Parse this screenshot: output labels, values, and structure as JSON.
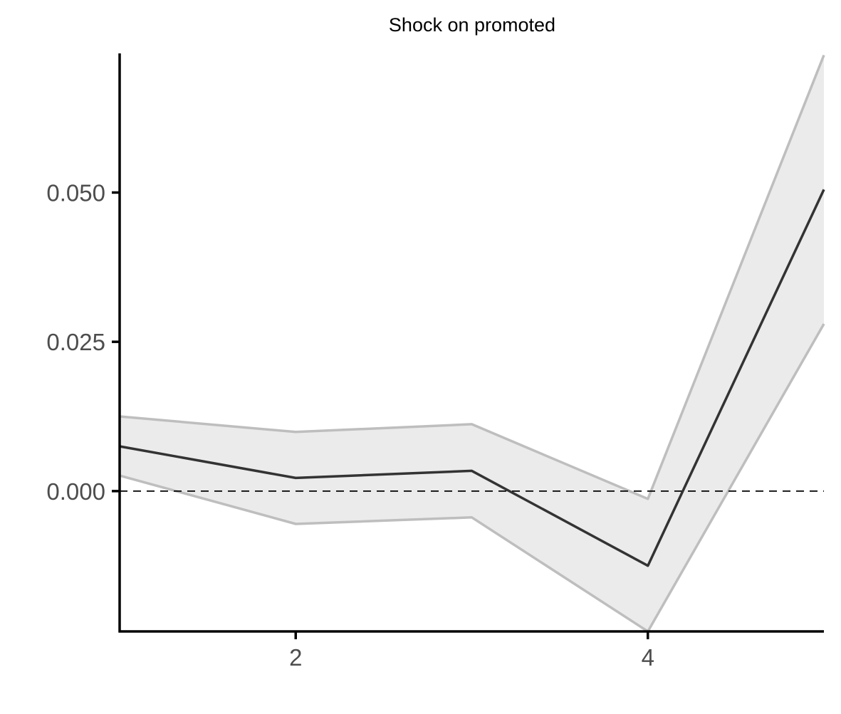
{
  "chart_data": {
    "type": "line",
    "title": "Shock on promoted",
    "xlabel": "",
    "ylabel": "",
    "x": [
      1,
      2,
      3,
      4,
      5
    ],
    "series": [
      {
        "values": [
          0.0075,
          0.0022,
          0.0034,
          -0.0125,
          0.0505
        ]
      }
    ],
    "band": {
      "lower": [
        0.0026,
        -0.0055,
        -0.0044,
        -0.0235,
        0.028
      ],
      "upper": [
        0.0125,
        0.0099,
        0.0112,
        -0.0013,
        0.073
      ]
    },
    "reference_line": {
      "y": 0.0,
      "style": "dashed"
    },
    "xlim": [
      1,
      5
    ],
    "ylim": [
      -0.0235,
      0.0733
    ],
    "x_ticks": [
      2,
      4
    ],
    "x_tick_labels": [
      "2",
      "4"
    ],
    "y_ticks": [
      0.0,
      0.025,
      0.05
    ],
    "y_tick_labels": [
      "0.000",
      "0.025",
      "0.050"
    ],
    "grid": false,
    "legend": "none",
    "colors": {
      "line": "#333333",
      "band_fill": "#ebebeb",
      "band_edge": "#bebebe",
      "axis": "#000000",
      "tick_label": "#4d4d4d"
    }
  }
}
